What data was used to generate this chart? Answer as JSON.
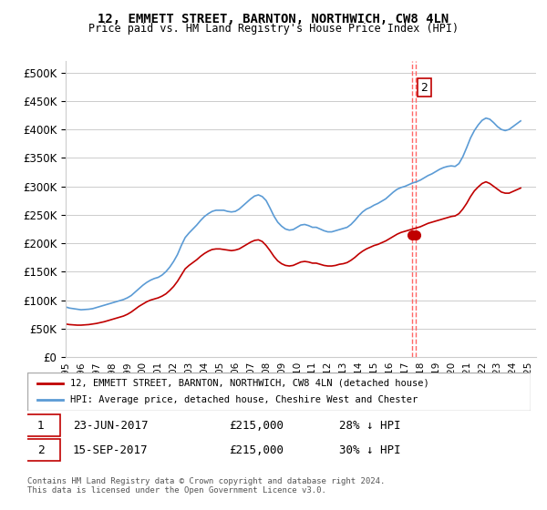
{
  "title": "12, EMMETT STREET, BARNTON, NORTHWICH, CW8 4LN",
  "subtitle": "Price paid vs. HM Land Registry's House Price Index (HPI)",
  "ylabel_values": [
    "£0",
    "£50K",
    "£100K",
    "£150K",
    "£200K",
    "£250K",
    "£300K",
    "£350K",
    "£400K",
    "£450K",
    "£500K"
  ],
  "yticks": [
    0,
    50000,
    100000,
    150000,
    200000,
    250000,
    300000,
    350000,
    400000,
    450000,
    500000
  ],
  "ylim": [
    0,
    520000
  ],
  "xlim_start": 1995.0,
  "xlim_end": 2025.5,
  "hpi_color": "#5b9bd5",
  "price_color": "#c00000",
  "annotation1_color": "#c00000",
  "annotation2_color": "#c00000",
  "dashed_line_color": "#ff6666",
  "legend_label_red": "12, EMMETT STREET, BARNTON, NORTHWICH, CW8 4LN (detached house)",
  "legend_label_blue": "HPI: Average price, detached house, Cheshire West and Chester",
  "annotation1_label": "1",
  "annotation1_date": "23-JUN-2017",
  "annotation1_price": "£215,000",
  "annotation1_hpi": "28% ↓ HPI",
  "annotation2_label": "2",
  "annotation2_date": "15-SEP-2017",
  "annotation2_price": "£215,000",
  "annotation2_hpi": "30% ↓ HPI",
  "footer": "Contains HM Land Registry data © Crown copyright and database right 2024.\nThis data is licensed under the Open Government Licence v3.0.",
  "sale1_x": 2017.48,
  "sale1_y": 215000,
  "sale2_x": 2017.71,
  "sale2_y": 215000,
  "hpi_x": [
    1995.0,
    1995.25,
    1995.5,
    1995.75,
    1996.0,
    1996.25,
    1996.5,
    1996.75,
    1997.0,
    1997.25,
    1997.5,
    1997.75,
    1998.0,
    1998.25,
    1998.5,
    1998.75,
    1999.0,
    1999.25,
    1999.5,
    1999.75,
    2000.0,
    2000.25,
    2000.5,
    2000.75,
    2001.0,
    2001.25,
    2001.5,
    2001.75,
    2002.0,
    2002.25,
    2002.5,
    2002.75,
    2003.0,
    2003.25,
    2003.5,
    2003.75,
    2004.0,
    2004.25,
    2004.5,
    2004.75,
    2005.0,
    2005.25,
    2005.5,
    2005.75,
    2006.0,
    2006.25,
    2006.5,
    2006.75,
    2007.0,
    2007.25,
    2007.5,
    2007.75,
    2008.0,
    2008.25,
    2008.5,
    2008.75,
    2009.0,
    2009.25,
    2009.5,
    2009.75,
    2010.0,
    2010.25,
    2010.5,
    2010.75,
    2011.0,
    2011.25,
    2011.5,
    2011.75,
    2012.0,
    2012.25,
    2012.5,
    2012.75,
    2013.0,
    2013.25,
    2013.5,
    2013.75,
    2014.0,
    2014.25,
    2014.5,
    2014.75,
    2015.0,
    2015.25,
    2015.5,
    2015.75,
    2016.0,
    2016.25,
    2016.5,
    2016.75,
    2017.0,
    2017.25,
    2017.5,
    2017.75,
    2018.0,
    2018.25,
    2018.5,
    2018.75,
    2019.0,
    2019.25,
    2019.5,
    2019.75,
    2020.0,
    2020.25,
    2020.5,
    2020.75,
    2021.0,
    2021.25,
    2021.5,
    2021.75,
    2022.0,
    2022.25,
    2022.5,
    2022.75,
    2023.0,
    2023.25,
    2023.5,
    2023.75,
    2024.0,
    2024.25,
    2024.5
  ],
  "hpi_y": [
    88000,
    86000,
    85000,
    84000,
    83000,
    83500,
    84000,
    85000,
    87000,
    89000,
    91000,
    93000,
    95000,
    97000,
    99000,
    101000,
    104000,
    108000,
    114000,
    120000,
    126000,
    131000,
    135000,
    138000,
    140000,
    144000,
    150000,
    158000,
    168000,
    180000,
    196000,
    210000,
    218000,
    225000,
    232000,
    240000,
    247000,
    252000,
    256000,
    258000,
    258000,
    258000,
    256000,
    255000,
    256000,
    260000,
    266000,
    272000,
    278000,
    283000,
    285000,
    282000,
    275000,
    262000,
    248000,
    237000,
    230000,
    225000,
    223000,
    224000,
    228000,
    232000,
    233000,
    231000,
    228000,
    228000,
    225000,
    222000,
    220000,
    220000,
    222000,
    224000,
    226000,
    228000,
    233000,
    240000,
    248000,
    255000,
    260000,
    263000,
    267000,
    270000,
    274000,
    278000,
    284000,
    290000,
    295000,
    298000,
    300000,
    303000,
    306000,
    308000,
    311000,
    315000,
    319000,
    322000,
    326000,
    330000,
    333000,
    335000,
    336000,
    335000,
    340000,
    352000,
    368000,
    385000,
    398000,
    408000,
    416000,
    420000,
    418000,
    412000,
    405000,
    400000,
    398000,
    400000,
    405000,
    410000,
    415000
  ],
  "price_x": [
    1995.0,
    1995.25,
    1995.5,
    1995.75,
    1996.0,
    1996.25,
    1996.5,
    1996.75,
    1997.0,
    1997.25,
    1997.5,
    1997.75,
    1998.0,
    1998.25,
    1998.5,
    1998.75,
    1999.0,
    1999.25,
    1999.5,
    1999.75,
    2000.0,
    2000.25,
    2000.5,
    2000.75,
    2001.0,
    2001.25,
    2001.5,
    2001.75,
    2002.0,
    2002.25,
    2002.5,
    2002.75,
    2003.0,
    2003.25,
    2003.5,
    2003.75,
    2004.0,
    2004.25,
    2004.5,
    2004.75,
    2005.0,
    2005.25,
    2005.5,
    2005.75,
    2006.0,
    2006.25,
    2006.5,
    2006.75,
    2007.0,
    2007.25,
    2007.5,
    2007.75,
    2008.0,
    2008.25,
    2008.5,
    2008.75,
    2009.0,
    2009.25,
    2009.5,
    2009.75,
    2010.0,
    2010.25,
    2010.5,
    2010.75,
    2011.0,
    2011.25,
    2011.5,
    2011.75,
    2012.0,
    2012.25,
    2012.5,
    2012.75,
    2013.0,
    2013.25,
    2013.5,
    2013.75,
    2014.0,
    2014.25,
    2014.5,
    2014.75,
    2015.0,
    2015.25,
    2015.5,
    2015.75,
    2016.0,
    2016.25,
    2016.5,
    2016.75,
    2017.0,
    2017.25,
    2017.5,
    2017.75,
    2018.0,
    2018.25,
    2018.5,
    2018.75,
    2019.0,
    2019.25,
    2019.5,
    2019.75,
    2020.0,
    2020.25,
    2020.5,
    2020.75,
    2021.0,
    2021.25,
    2021.5,
    2021.75,
    2022.0,
    2022.25,
    2022.5,
    2022.75,
    2023.0,
    2023.25,
    2023.5,
    2023.75,
    2024.0,
    2024.25,
    2024.5
  ],
  "price_y": [
    58000,
    57000,
    56500,
    56000,
    56000,
    56500,
    57000,
    58000,
    59000,
    60500,
    62000,
    64000,
    66000,
    68000,
    70000,
    72000,
    75000,
    79000,
    84000,
    89000,
    93000,
    97000,
    100000,
    102000,
    104000,
    107000,
    111000,
    117000,
    124000,
    133000,
    144000,
    155000,
    161000,
    166000,
    171000,
    177000,
    182000,
    186000,
    189000,
    190000,
    190000,
    189000,
    188000,
    187000,
    188000,
    190000,
    194000,
    198000,
    202000,
    205000,
    206000,
    203000,
    196000,
    187000,
    177000,
    169000,
    164000,
    161000,
    160000,
    161000,
    164000,
    167000,
    168000,
    167000,
    165000,
    165000,
    163000,
    161000,
    160000,
    160000,
    161000,
    163000,
    164000,
    166000,
    170000,
    175000,
    181000,
    186000,
    190000,
    193000,
    196000,
    198000,
    201000,
    204000,
    208000,
    212000,
    216000,
    219000,
    221000,
    223000,
    225000,
    227000,
    229000,
    232000,
    235000,
    237000,
    239000,
    241000,
    243000,
    245000,
    247000,
    248000,
    252000,
    260000,
    270000,
    282000,
    292000,
    299000,
    305000,
    308000,
    305000,
    300000,
    295000,
    290000,
    288000,
    288000,
    291000,
    294000,
    297000
  ]
}
